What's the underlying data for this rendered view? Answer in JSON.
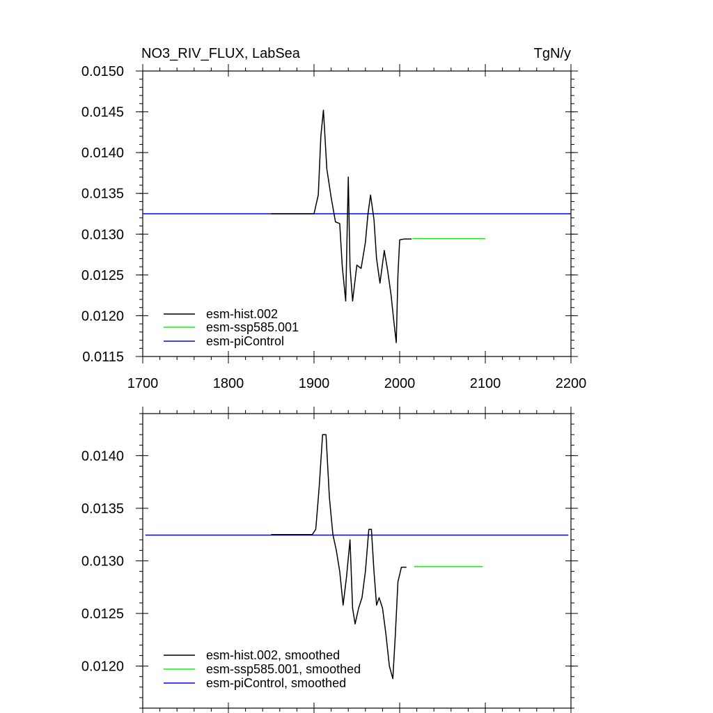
{
  "chart_data": [
    {
      "type": "line",
      "title": "NO3_RIV_FLUX, LabSea",
      "units": "TgN/y",
      "xlim": [
        1700,
        2200
      ],
      "ylim": [
        0.0115,
        0.015
      ],
      "x_ticks": [
        1700,
        1800,
        1900,
        2000,
        2100,
        2200
      ],
      "x_tick_labels": [
        "1700",
        "1800",
        "1900",
        "2000",
        "2100",
        "2200"
      ],
      "y_ticks": [
        0.0115,
        0.012,
        0.0125,
        0.013,
        0.0135,
        0.014,
        0.0145,
        0.015
      ],
      "y_tick_labels": [
        "0.0115",
        "0.0120",
        "0.0125",
        "0.0130",
        "0.0135",
        "0.0140",
        "0.0145",
        "0.0150"
      ],
      "grid": false,
      "legend_position": "bottom-left",
      "series": [
        {
          "name": "esm-hist.002",
          "color": "#000000",
          "x": [
            1850,
            1900,
            1905,
            1908,
            1911,
            1915,
            1920,
            1925,
            1930,
            1933,
            1937,
            1940,
            1942,
            1945,
            1950,
            1955,
            1960,
            1963,
            1966,
            1970,
            1973,
            1977,
            1982,
            1986,
            1990,
            1993,
            1996,
            1998,
            2000,
            2005,
            2014
          ],
          "y": [
            0.01325,
            0.01325,
            0.01348,
            0.0142,
            0.01452,
            0.0138,
            0.01345,
            0.01315,
            0.01313,
            0.0126,
            0.01218,
            0.0137,
            0.0126,
            0.01218,
            0.01262,
            0.01258,
            0.0129,
            0.01325,
            0.01348,
            0.01318,
            0.0127,
            0.0124,
            0.0128,
            0.01255,
            0.01225,
            0.01195,
            0.01167,
            0.0125,
            0.01293,
            0.01294,
            0.01294
          ]
        },
        {
          "name": "esm-ssp585.001",
          "color": "#00ff00",
          "x": [
            2015,
            2100
          ],
          "y": [
            0.012945,
            0.012945
          ]
        },
        {
          "name": "esm-piControl",
          "color": "#0000ff",
          "x": [
            1700,
            2200
          ],
          "y": [
            0.01325,
            0.01325
          ]
        }
      ]
    },
    {
      "type": "line",
      "title": "",
      "xlim": [
        1700,
        2200
      ],
      "ylim": [
        0.0116,
        0.0144
      ],
      "x_ticks": [
        1700,
        1800,
        1900,
        2000,
        2100,
        2200
      ],
      "x_tick_labels": [],
      "y_ticks": [
        0.012,
        0.0125,
        0.013,
        0.0135,
        0.014
      ],
      "y_tick_labels": [
        "0.0120",
        "0.0125",
        "0.0130",
        "0.0135",
        "0.0140"
      ],
      "grid": false,
      "legend_position": "bottom-left",
      "series": [
        {
          "name": "esm-hist.002, smoothed",
          "color": "#000000",
          "x": [
            1850,
            1898,
            1902,
            1906,
            1910,
            1914,
            1918,
            1922,
            1926,
            1930,
            1934,
            1938,
            1942,
            1945,
            1948,
            1952,
            1956,
            1960,
            1964,
            1967,
            1970,
            1973,
            1976,
            1980,
            1984,
            1988,
            1992,
            1995,
            1998,
            2002,
            2008
          ],
          "y": [
            0.01325,
            0.01325,
            0.0133,
            0.0137,
            0.0142,
            0.0142,
            0.0136,
            0.01325,
            0.0131,
            0.0129,
            0.01258,
            0.01285,
            0.0132,
            0.01255,
            0.0124,
            0.01255,
            0.01265,
            0.0129,
            0.0133,
            0.0133,
            0.0129,
            0.01258,
            0.01265,
            0.01255,
            0.0123,
            0.012,
            0.01188,
            0.0123,
            0.0128,
            0.01294,
            0.01294
          ]
        },
        {
          "name": "esm-ssp585.001, smoothed",
          "color": "#00ff00",
          "x": [
            2017,
            2097
          ],
          "y": [
            0.012945,
            0.012945
          ]
        },
        {
          "name": "esm-piControl, smoothed",
          "color": "#0000ff",
          "x": [
            1703,
            2197
          ],
          "y": [
            0.013245,
            0.013245
          ]
        }
      ]
    }
  ]
}
